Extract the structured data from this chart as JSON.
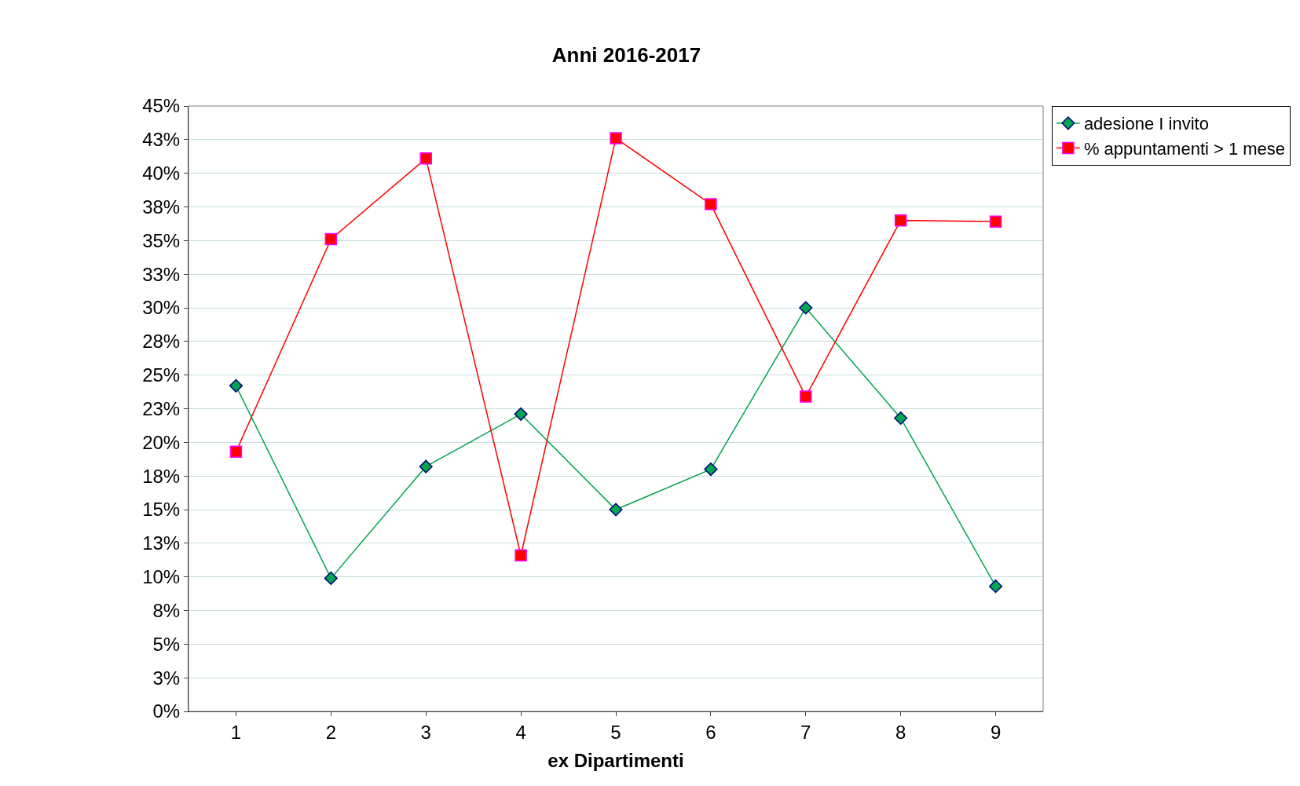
{
  "chart_data": {
    "type": "line",
    "title": "Anni 2016-2017",
    "xlabel": "ex Dipartimenti",
    "categories": [
      "1",
      "2",
      "3",
      "4",
      "5",
      "6",
      "7",
      "8",
      "9"
    ],
    "series": [
      {
        "name": "adesione I invito",
        "color": "#00a650",
        "marker": "diamond",
        "values": [
          24.2,
          9.9,
          18.2,
          22.1,
          15.0,
          18.0,
          30.0,
          21.8,
          9.3
        ]
      },
      {
        "name": "% appuntamenti > 1 mese",
        "color": "#ff0000",
        "marker": "square",
        "values": [
          19.3,
          35.1,
          41.1,
          11.6,
          42.6,
          37.7,
          23.4,
          36.5,
          36.4
        ]
      }
    ],
    "ylim": [
      0,
      45
    ],
    "yticks": [
      {
        "value": 0,
        "label": "0%"
      },
      {
        "value": 2.5,
        "label": "3%"
      },
      {
        "value": 5,
        "label": "5%"
      },
      {
        "value": 7.5,
        "label": "8%"
      },
      {
        "value": 10,
        "label": "10%"
      },
      {
        "value": 12.5,
        "label": "13%"
      },
      {
        "value": 15,
        "label": "15%"
      },
      {
        "value": 17.5,
        "label": "18%"
      },
      {
        "value": 20,
        "label": "20%"
      },
      {
        "value": 22.5,
        "label": "23%"
      },
      {
        "value": 25,
        "label": "25%"
      },
      {
        "value": 27.5,
        "label": "28%"
      },
      {
        "value": 30,
        "label": "30%"
      },
      {
        "value": 32.5,
        "label": "33%"
      },
      {
        "value": 35,
        "label": "35%"
      },
      {
        "value": 37.5,
        "label": "38%"
      },
      {
        "value": 40,
        "label": "40%"
      },
      {
        "value": 42.5,
        "label": "43%"
      },
      {
        "value": 45,
        "label": "45%"
      }
    ],
    "grid": "y",
    "legend": "top right",
    "line_style": "solid"
  }
}
